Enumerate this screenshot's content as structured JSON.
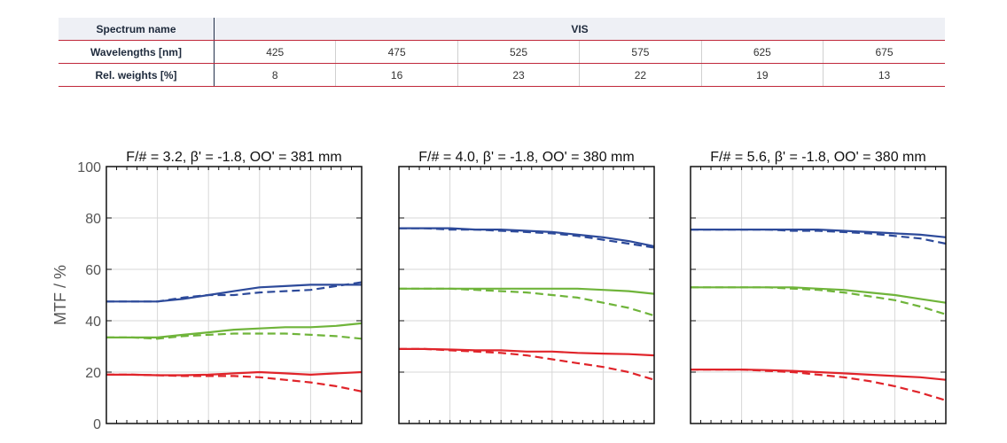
{
  "table": {
    "row_spectrum": {
      "label": "Spectrum name",
      "value": "VIS"
    },
    "row_wavelengths": {
      "label": "Wavelengths [nm]",
      "values": [
        "425",
        "475",
        "525",
        "575",
        "625",
        "675"
      ]
    },
    "row_weights": {
      "label": "Rel. weights [%]",
      "values": [
        "8",
        "16",
        "23",
        "22",
        "19",
        "13"
      ]
    }
  },
  "y_axis": {
    "label": "MTF / %",
    "ticks": [
      "0",
      "20",
      "40",
      "60",
      "80",
      "100"
    ]
  },
  "colors": {
    "blue": "#2d4a9a",
    "green": "#6fb43a",
    "red": "#e0242a",
    "grid": "#d7d7d7",
    "frame": "#111111"
  },
  "chart_data": [
    {
      "type": "line",
      "title": "F/# = 3.2, β' = -1.8, OO' = 381 mm",
      "ylim": [
        0,
        100
      ],
      "xlim": [
        0,
        5
      ],
      "grid": true,
      "x": [
        0,
        0.5,
        1,
        1.5,
        2,
        2.5,
        3,
        3.5,
        4,
        4.5,
        5
      ],
      "series": [
        {
          "color": "blue",
          "style": "solid",
          "values": [
            47.5,
            47.5,
            47.5,
            48.5,
            50,
            51.5,
            53,
            53.5,
            54,
            54,
            54
          ]
        },
        {
          "color": "blue",
          "style": "dashed",
          "values": [
            47.5,
            47.5,
            47.5,
            49,
            50,
            50,
            51,
            51.5,
            52,
            53.5,
            55
          ]
        },
        {
          "color": "green",
          "style": "solid",
          "values": [
            33.5,
            33.5,
            33.5,
            34.5,
            35.5,
            36.5,
            37,
            37.5,
            37.5,
            38,
            39
          ]
        },
        {
          "color": "green",
          "style": "dashed",
          "values": [
            33.5,
            33.5,
            33,
            34,
            34.5,
            35,
            35,
            35,
            34.5,
            34,
            33
          ]
        },
        {
          "color": "red",
          "style": "solid",
          "values": [
            19,
            19,
            18.8,
            18.8,
            19,
            19.5,
            20,
            19.5,
            19,
            19.5,
            20
          ]
        },
        {
          "color": "red",
          "style": "dashed",
          "values": [
            19,
            19,
            18.8,
            18.5,
            18.5,
            18.5,
            18,
            17,
            16,
            14.5,
            12.5
          ]
        }
      ]
    },
    {
      "type": "line",
      "title": "F/# = 4.0, β' = -1.8, OO' = 380 mm",
      "ylim": [
        0,
        100
      ],
      "xlim": [
        0,
        5
      ],
      "grid": true,
      "x": [
        0,
        0.5,
        1,
        1.5,
        2,
        2.5,
        3,
        3.5,
        4,
        4.5,
        5
      ],
      "series": [
        {
          "color": "blue",
          "style": "solid",
          "values": [
            76,
            76,
            76,
            75.5,
            75.5,
            75,
            74.5,
            73.5,
            72.5,
            71,
            69
          ]
        },
        {
          "color": "blue",
          "style": "dashed",
          "values": [
            76,
            76,
            75.5,
            75.5,
            75,
            74.5,
            74,
            73,
            71.5,
            70,
            68.5
          ]
        },
        {
          "color": "green",
          "style": "solid",
          "values": [
            52.5,
            52.5,
            52.5,
            52.5,
            52.5,
            52.5,
            52.5,
            52.5,
            52,
            51.5,
            50.5
          ]
        },
        {
          "color": "green",
          "style": "dashed",
          "values": [
            52.5,
            52.5,
            52.5,
            52,
            51.5,
            51,
            50,
            49,
            47,
            45,
            42
          ]
        },
        {
          "color": "red",
          "style": "solid",
          "values": [
            29,
            29,
            28.8,
            28.5,
            28.5,
            28,
            28,
            27.5,
            27.2,
            27,
            26.5
          ]
        },
        {
          "color": "red",
          "style": "dashed",
          "values": [
            29,
            29,
            28.5,
            28,
            27.5,
            26.5,
            25,
            23.5,
            22,
            20,
            17
          ]
        }
      ]
    },
    {
      "type": "line",
      "title": "F/# = 5.6, β' = -1.8, OO' = 380 mm",
      "ylim": [
        0,
        100
      ],
      "xlim": [
        0,
        5
      ],
      "grid": true,
      "x": [
        0,
        0.5,
        1,
        1.5,
        2,
        2.5,
        3,
        3.5,
        4,
        4.5,
        5
      ],
      "series": [
        {
          "color": "blue",
          "style": "solid",
          "values": [
            75.5,
            75.5,
            75.5,
            75.5,
            75.5,
            75.5,
            75,
            74.5,
            74,
            73.5,
            72.5
          ]
        },
        {
          "color": "blue",
          "style": "dashed",
          "values": [
            75.5,
            75.5,
            75.5,
            75.5,
            75,
            75,
            74.5,
            74,
            73,
            72,
            70
          ]
        },
        {
          "color": "green",
          "style": "solid",
          "values": [
            53,
            53,
            53,
            53,
            53,
            52.5,
            52,
            51,
            50,
            48.5,
            47
          ]
        },
        {
          "color": "green",
          "style": "dashed",
          "values": [
            53,
            53,
            53,
            53,
            52.5,
            52,
            51,
            49.5,
            48,
            45.5,
            42.5
          ]
        },
        {
          "color": "red",
          "style": "solid",
          "values": [
            21,
            21,
            21,
            20.8,
            20.5,
            20,
            19.5,
            19,
            18.5,
            18,
            17
          ]
        },
        {
          "color": "red",
          "style": "dashed",
          "values": [
            21,
            21,
            21,
            20.5,
            20,
            19,
            18,
            16.5,
            14.5,
            12,
            9
          ]
        }
      ]
    }
  ]
}
